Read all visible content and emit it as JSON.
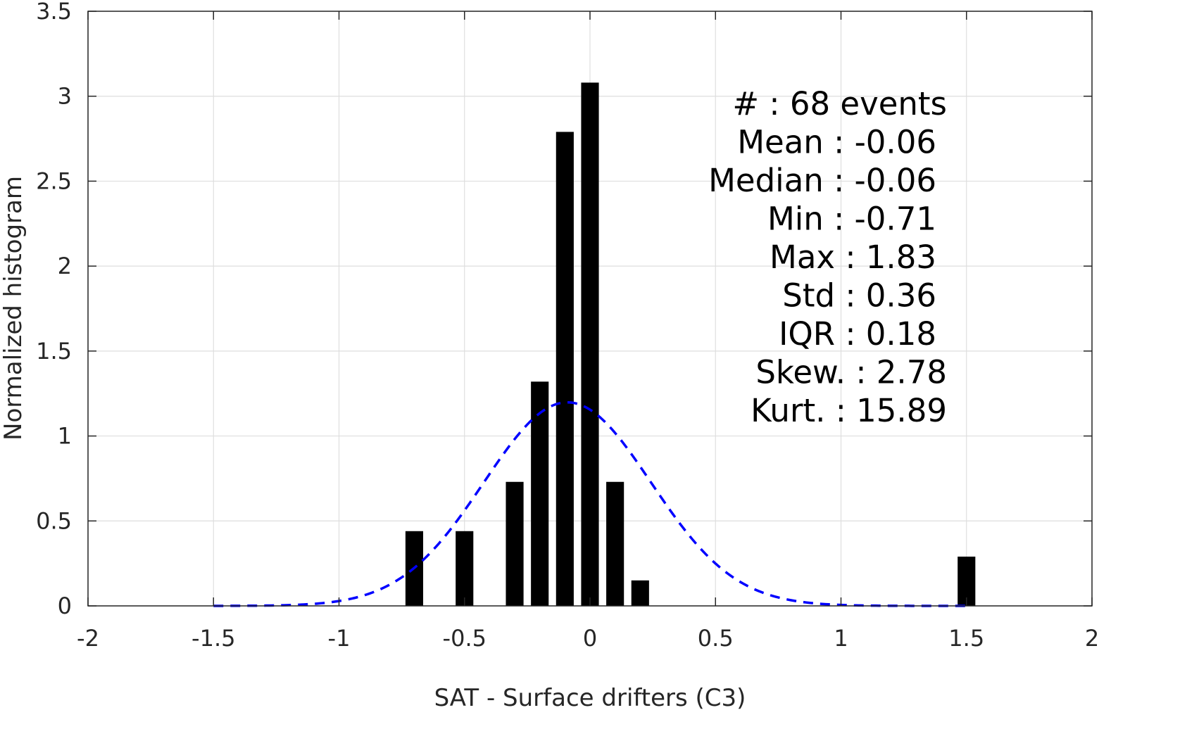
{
  "chart_data": {
    "type": "bar",
    "xlabel": "SAT - Surface drifters (C3)",
    "ylabel": "Normalized histogram",
    "xlim": [
      -2,
      2
    ],
    "ylim": [
      0,
      3.5
    ],
    "xticks": [
      -2,
      -1.5,
      -1,
      -0.5,
      0,
      0.5,
      1,
      1.5,
      2
    ],
    "xtick_labels": [
      "-2",
      "-1.5",
      "-1",
      "-0.5",
      "0",
      "0.5",
      "1",
      "1.5",
      "2"
    ],
    "yticks": [
      0,
      0.5,
      1,
      1.5,
      2,
      2.5,
      3,
      3.5
    ],
    "ytick_labels": [
      "0",
      "0.5",
      "1",
      "1.5",
      "2",
      "2.5",
      "3",
      "3.5"
    ],
    "grid": true,
    "bin_width": 0.1,
    "bins": [
      {
        "x": -0.7,
        "y": 0.44
      },
      {
        "x": -0.5,
        "y": 0.44
      },
      {
        "x": -0.3,
        "y": 0.73
      },
      {
        "x": -0.2,
        "y": 1.32
      },
      {
        "x": -0.1,
        "y": 2.79
      },
      {
        "x": 0.0,
        "y": 3.08
      },
      {
        "x": 0.1,
        "y": 0.73
      },
      {
        "x": 0.2,
        "y": 0.15
      },
      {
        "x": 1.5,
        "y": 0.29
      }
    ],
    "bar_color": "#000000",
    "fit_curve": {
      "kind": "normal",
      "mean": -0.09,
      "std": 0.333,
      "x_range": [
        -1.5,
        1.5
      ],
      "color": "#0000ff",
      "style": "dashed"
    },
    "stats_annotation": [
      "#  : 68 events",
      "Mean : -0.06",
      "Median : -0.06",
      "Min : -0.71",
      "Max : 1.83",
      "Std : 0.36",
      "IQR : 0.18",
      "Skew. : 2.78",
      "Kurt. : 15.89"
    ],
    "stats_placement": "top-right"
  }
}
